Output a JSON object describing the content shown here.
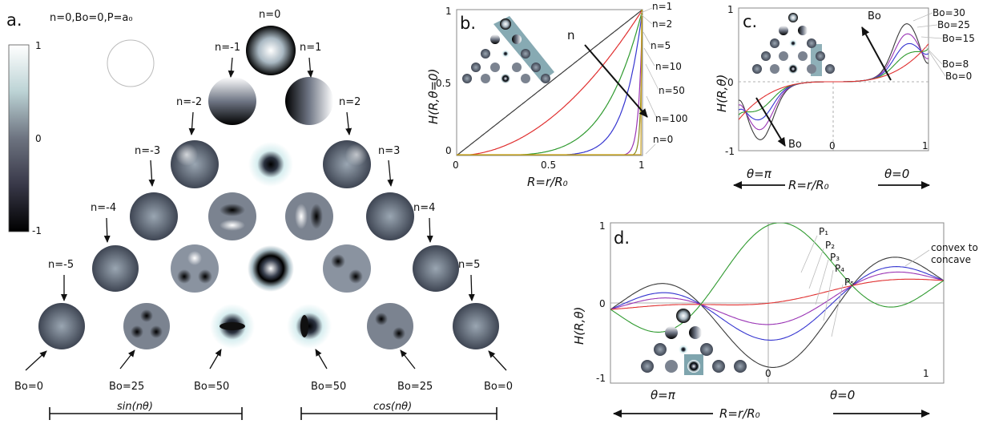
{
  "panel_a": {
    "letter": "a.",
    "top_label": "n=0,Bo=0,P=a₀",
    "colorbar": {
      "max": "1",
      "mid": "0",
      "min": "-1"
    },
    "n_labels": [
      "n=0",
      "n=-1",
      "n=1",
      "n=-2",
      "n=2",
      "n=-3",
      "n=3",
      "n=-4",
      "n=4",
      "n=-5",
      "n=5"
    ],
    "bo_labels": [
      "Bo=0",
      "Bo=25",
      "Bo=50",
      "Bo=50",
      "Bo=25",
      "Bo=0"
    ],
    "sin_label": "sin(nθ)",
    "cos_label": "cos(nθ)"
  },
  "panel_b": {
    "letter": "b.",
    "ylabel": "H(R,θ=0)",
    "xlabel": "R=r/R₀",
    "yticks": [
      "1",
      "0.5",
      "0"
    ],
    "xticks": [
      "0",
      "0.5",
      "1"
    ],
    "arrow_label": "n",
    "curve_labels": [
      "n=1",
      "n=2",
      "n=5",
      "n=10",
      "n=50",
      "n=100",
      "n=0"
    ]
  },
  "panel_c": {
    "letter": "c.",
    "ylabel": "H(R,θ)",
    "yticks": [
      "1",
      "0",
      "-1"
    ],
    "xticks": [
      "0",
      "1"
    ],
    "arrow_label_top": "Bo",
    "arrow_label_bottom": "Bo",
    "curve_labels": [
      "Bo=30",
      "Bo=25",
      "Bo=15",
      "Bo=8",
      "Bo=0"
    ],
    "theta_left": "θ=π",
    "theta_right": "θ=0",
    "xlabel": "R=r/R₀"
  },
  "panel_d": {
    "letter": "d.",
    "ylabel": "H(R,θ)",
    "yticks": [
      "1",
      "0",
      "-1"
    ],
    "xticks": [
      "0",
      "1"
    ],
    "curve_labels": [
      "P₁",
      "P₂",
      "P₃",
      "P₄",
      "P₅"
    ],
    "convex_label_1": "convex to",
    "convex_label_2": "concave",
    "theta_left": "θ=π",
    "theta_right": "θ=0",
    "xlabel": "R=r/R₀"
  },
  "colors": {
    "series_black": "#3a3a3a",
    "series_red": "#e03030",
    "series_green": "#2f9a2f",
    "series_blue": "#3535d0",
    "series_purple": "#9a35b5",
    "series_olive": "#8a8a20"
  }
}
